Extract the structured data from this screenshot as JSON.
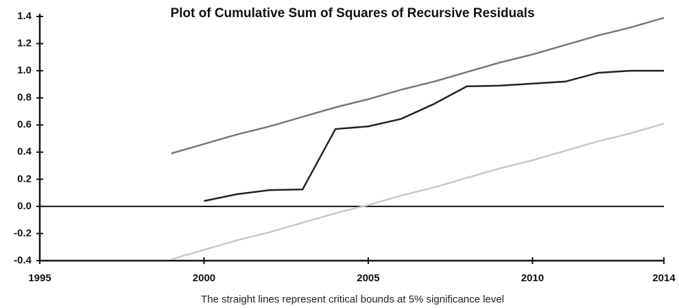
{
  "chart_data": {
    "type": "line",
    "title": "Plot of Cumulative Sum of Squares of Recursive Residuals",
    "x_label": "The straight lines represent critical bounds at 5% significance level",
    "x": [
      1999,
      2000,
      2001,
      2002,
      2003,
      2004,
      2005,
      2006,
      2007,
      2008,
      2009,
      2010,
      2011,
      2012,
      2013,
      2014
    ],
    "series": [
      {
        "color": "#222222",
        "values": [
          null,
          0.04,
          0.09,
          0.12,
          0.125,
          0.57,
          0.59,
          0.645,
          0.755,
          0.885,
          0.89,
          0.905,
          0.92,
          0.985,
          1.0,
          1.0
        ]
      },
      {
        "color": "#777777",
        "values": [
          0.39,
          0.46,
          0.53,
          0.59,
          0.66,
          0.73,
          0.79,
          0.86,
          0.92,
          0.99,
          1.06,
          1.12,
          1.19,
          1.26,
          1.32,
          1.39
        ]
      },
      {
        "color": "#c8c8c8",
        "values": [
          -0.39,
          -0.32,
          -0.25,
          -0.19,
          -0.12,
          -0.05,
          0.01,
          0.08,
          0.14,
          0.21,
          0.28,
          0.34,
          0.41,
          0.48,
          0.54,
          0.61
        ]
      }
    ],
    "xlim": [
      1995,
      2014
    ],
    "xticks": [
      1995,
      2000,
      2005,
      2010,
      2014
    ],
    "ylim": [
      -0.4,
      1.4
    ],
    "yticks": [
      1.4,
      1.2,
      {
        "value": 1,
        "label": "1.0"
      },
      0.8,
      0.6,
      0.4,
      0.2,
      {
        "value": 0,
        "label": "0.0"
      },
      -0.2,
      -0.4
    ],
    "grid": false
  }
}
